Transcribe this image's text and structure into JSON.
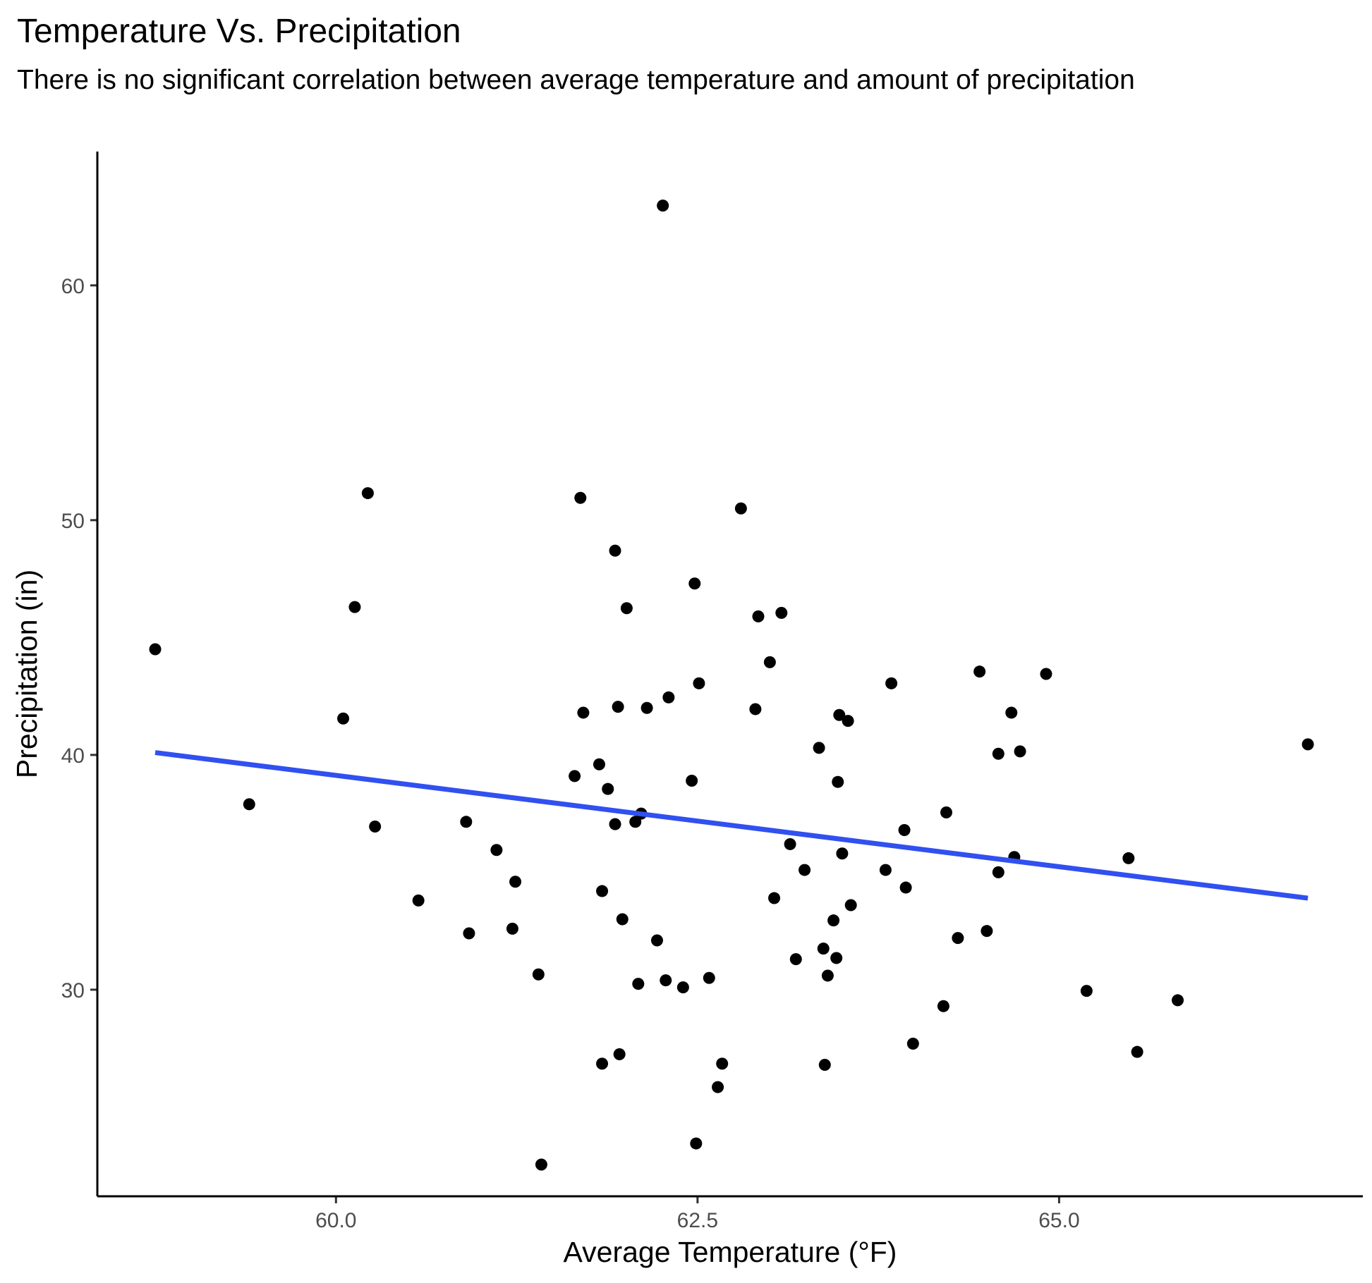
{
  "chart_data": {
    "type": "scatter",
    "title": "Temperature Vs. Precipitation",
    "subtitle": "There is no significant correlation between average temperature and amount of precipitation",
    "xlabel": "Average Temperature (°F)",
    "ylabel": "Precipitation (in)",
    "xlim": [
      58.35,
      67.1
    ],
    "ylim": [
      21.2,
      65.7
    ],
    "x_ticks": [
      60.0,
      62.5,
      65.0
    ],
    "x_tick_labels": [
      "60.0",
      "62.5",
      "65.0"
    ],
    "y_ticks": [
      30,
      40,
      50,
      60
    ],
    "y_tick_labels": [
      "30",
      "40",
      "50",
      "60"
    ],
    "grid": false,
    "legend": "none",
    "point_color": "#000000",
    "trend_line": {
      "method": "linear",
      "color": "#3050f0",
      "x": [
        58.75,
        66.72
      ],
      "y": [
        40.1,
        33.9
      ]
    },
    "points": [
      {
        "x": 58.75,
        "y": 44.5
      },
      {
        "x": 59.4,
        "y": 37.9
      },
      {
        "x": 60.05,
        "y": 41.55
      },
      {
        "x": 60.13,
        "y": 46.3
      },
      {
        "x": 60.22,
        "y": 51.15
      },
      {
        "x": 60.27,
        "y": 36.95
      },
      {
        "x": 60.57,
        "y": 33.8
      },
      {
        "x": 60.9,
        "y": 37.15
      },
      {
        "x": 60.92,
        "y": 32.4
      },
      {
        "x": 61.11,
        "y": 35.95
      },
      {
        "x": 61.22,
        "y": 32.6
      },
      {
        "x": 61.24,
        "y": 34.6
      },
      {
        "x": 61.4,
        "y": 30.65
      },
      {
        "x": 61.42,
        "y": 22.55
      },
      {
        "x": 61.65,
        "y": 39.1
      },
      {
        "x": 61.69,
        "y": 50.95
      },
      {
        "x": 61.71,
        "y": 41.8
      },
      {
        "x": 61.82,
        "y": 39.6
      },
      {
        "x": 61.84,
        "y": 34.2
      },
      {
        "x": 61.84,
        "y": 26.85
      },
      {
        "x": 61.88,
        "y": 38.55
      },
      {
        "x": 61.93,
        "y": 48.7
      },
      {
        "x": 61.93,
        "y": 37.05
      },
      {
        "x": 61.95,
        "y": 42.05
      },
      {
        "x": 61.96,
        "y": 27.25
      },
      {
        "x": 61.98,
        "y": 33.0
      },
      {
        "x": 62.01,
        "y": 46.25
      },
      {
        "x": 62.07,
        "y": 37.15
      },
      {
        "x": 62.09,
        "y": 30.25
      },
      {
        "x": 62.11,
        "y": 37.5
      },
      {
        "x": 62.15,
        "y": 42.0
      },
      {
        "x": 62.22,
        "y": 32.1
      },
      {
        "x": 62.26,
        "y": 63.4
      },
      {
        "x": 62.28,
        "y": 30.4
      },
      {
        "x": 62.3,
        "y": 42.45
      },
      {
        "x": 62.4,
        "y": 30.1
      },
      {
        "x": 62.46,
        "y": 38.9
      },
      {
        "x": 62.48,
        "y": 47.3
      },
      {
        "x": 62.49,
        "y": 23.45
      },
      {
        "x": 62.51,
        "y": 43.05
      },
      {
        "x": 62.58,
        "y": 30.5
      },
      {
        "x": 62.64,
        "y": 25.85
      },
      {
        "x": 62.67,
        "y": 26.85
      },
      {
        "x": 62.8,
        "y": 50.5
      },
      {
        "x": 62.9,
        "y": 41.95
      },
      {
        "x": 62.92,
        "y": 45.9
      },
      {
        "x": 63.0,
        "y": 43.95
      },
      {
        "x": 63.03,
        "y": 33.9
      },
      {
        "x": 63.08,
        "y": 46.05
      },
      {
        "x": 63.14,
        "y": 36.2
      },
      {
        "x": 63.18,
        "y": 31.3
      },
      {
        "x": 63.24,
        "y": 35.1
      },
      {
        "x": 63.34,
        "y": 40.3
      },
      {
        "x": 63.37,
        "y": 31.75
      },
      {
        "x": 63.38,
        "y": 26.8
      },
      {
        "x": 63.4,
        "y": 30.6
      },
      {
        "x": 63.44,
        "y": 32.95
      },
      {
        "x": 63.46,
        "y": 31.35
      },
      {
        "x": 63.47,
        "y": 38.85
      },
      {
        "x": 63.48,
        "y": 41.7
      },
      {
        "x": 63.5,
        "y": 35.8
      },
      {
        "x": 63.54,
        "y": 41.45
      },
      {
        "x": 63.56,
        "y": 33.6
      },
      {
        "x": 63.8,
        "y": 35.1
      },
      {
        "x": 63.84,
        "y": 43.05
      },
      {
        "x": 63.93,
        "y": 36.8
      },
      {
        "x": 63.94,
        "y": 34.35
      },
      {
        "x": 63.99,
        "y": 27.7
      },
      {
        "x": 64.2,
        "y": 29.3
      },
      {
        "x": 64.22,
        "y": 37.55
      },
      {
        "x": 64.3,
        "y": 32.2
      },
      {
        "x": 64.45,
        "y": 43.55
      },
      {
        "x": 64.5,
        "y": 32.5
      },
      {
        "x": 64.58,
        "y": 40.05
      },
      {
        "x": 64.58,
        "y": 35.0
      },
      {
        "x": 64.67,
        "y": 41.8
      },
      {
        "x": 64.69,
        "y": 35.65
      },
      {
        "x": 64.73,
        "y": 40.15
      },
      {
        "x": 64.91,
        "y": 43.45
      },
      {
        "x": 65.19,
        "y": 29.95
      },
      {
        "x": 65.48,
        "y": 35.6
      },
      {
        "x": 65.54,
        "y": 27.35
      },
      {
        "x": 65.82,
        "y": 29.55
      },
      {
        "x": 66.72,
        "y": 40.45
      }
    ]
  }
}
